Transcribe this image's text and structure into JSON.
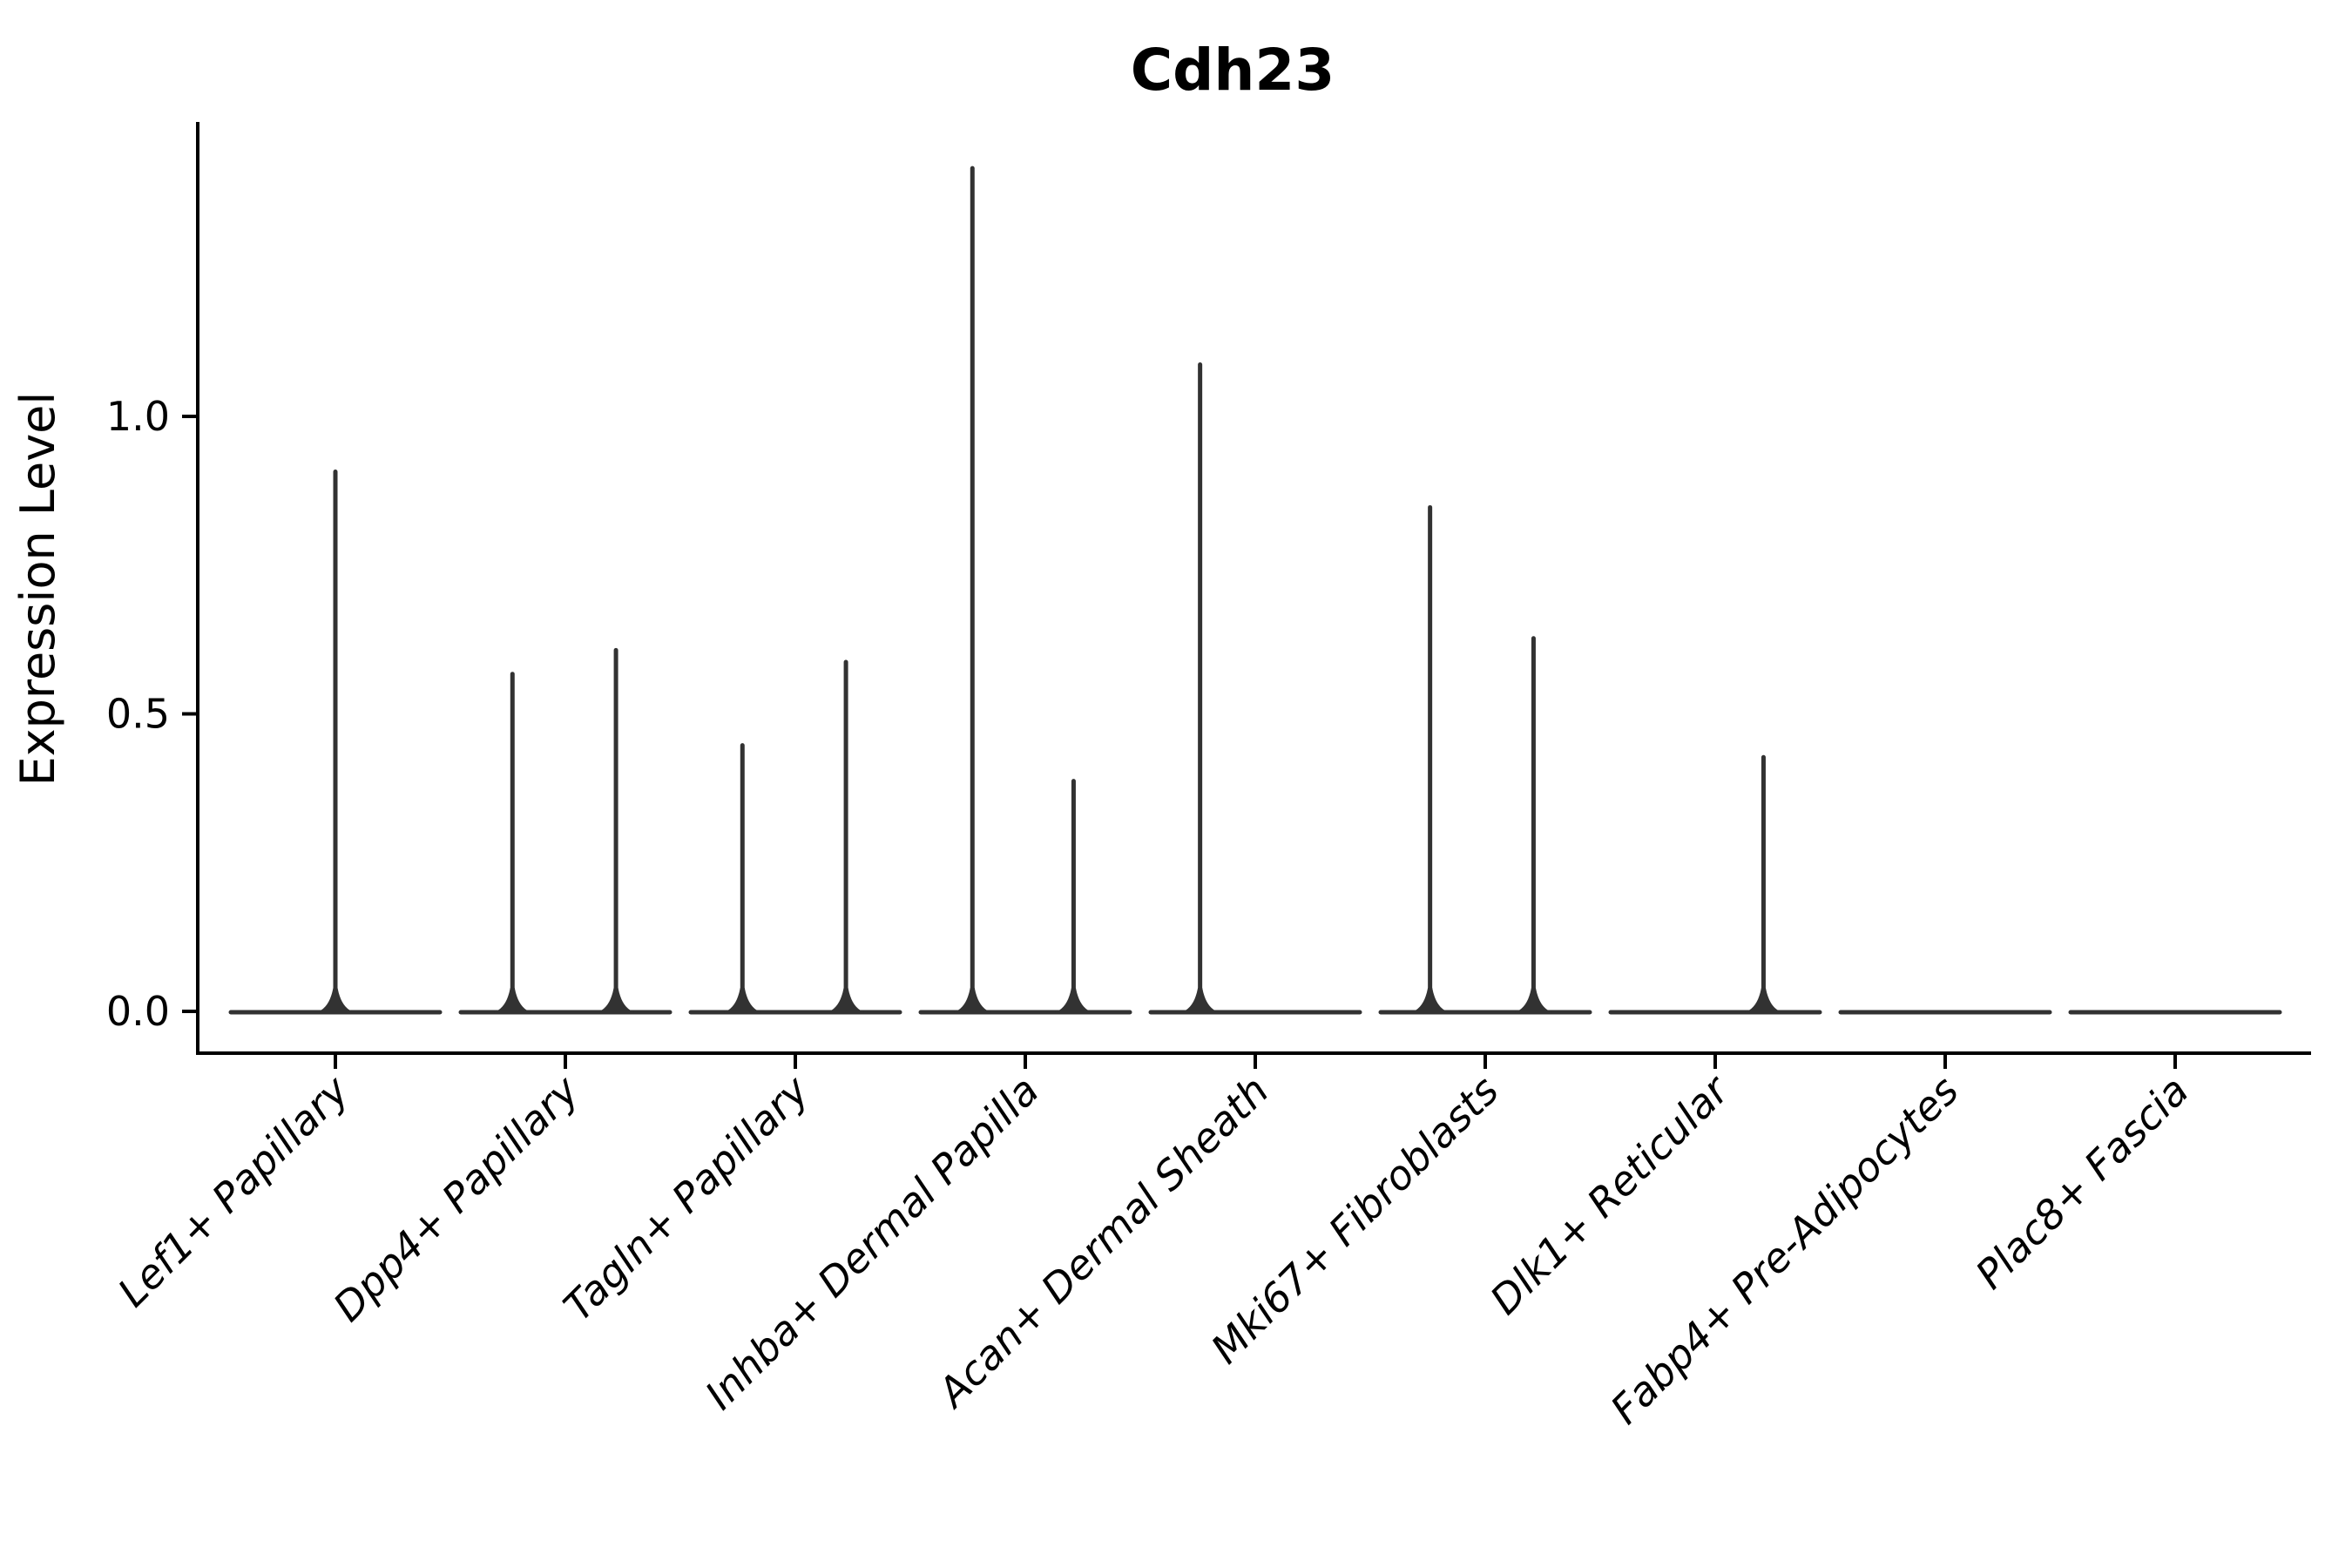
{
  "chart_data": {
    "type": "violin",
    "title": "Cdh23",
    "ylabel": "Expression Level",
    "xlabel": "",
    "ylim": [
      -0.07,
      1.5
    ],
    "yticks": [
      {
        "value": 0.0,
        "label": "0.0"
      },
      {
        "value": 0.5,
        "label": "0.5"
      },
      {
        "value": 1.0,
        "label": "1.0"
      }
    ],
    "grid": false,
    "legend": "none",
    "axis_color": "#000000",
    "violin_color": "#323232",
    "categories": [
      "Lef1+ Papillary",
      "Dpp4+ Papillary",
      "Tagln+ Papillary",
      "Inhba+ Dermal Papilla",
      "Acan+ Dermal Sheath",
      "Mki67+ Fibroblasts",
      "Dlk1+ Reticular",
      "Fabp4+ Pre-Adipocytes",
      "Plac8+ Fascia"
    ],
    "violins": [
      {
        "category": "Lef1+ Papillary",
        "baseline_at": 0.0,
        "spikes": [
          {
            "offset": 0.0,
            "max": 0.91
          }
        ]
      },
      {
        "category": "Dpp4+ Papillary",
        "baseline_at": 0.0,
        "spikes": [
          {
            "offset": -0.23,
            "max": 0.57
          },
          {
            "offset": 0.22,
            "max": 0.61
          }
        ]
      },
      {
        "category": "Tagln+ Papillary",
        "baseline_at": 0.0,
        "spikes": [
          {
            "offset": -0.23,
            "max": 0.45
          },
          {
            "offset": 0.22,
            "max": 0.59
          }
        ]
      },
      {
        "category": "Inhba+ Dermal Papilla",
        "baseline_at": 0.0,
        "spikes": [
          {
            "offset": -0.23,
            "max": 1.42
          },
          {
            "offset": 0.21,
            "max": 0.39
          }
        ]
      },
      {
        "category": "Acan+ Dermal Sheath",
        "baseline_at": 0.0,
        "spikes": [
          {
            "offset": -0.24,
            "max": 1.09
          }
        ]
      },
      {
        "category": "Mki67+ Fibroblasts",
        "baseline_at": 0.0,
        "spikes": [
          {
            "offset": -0.24,
            "max": 0.85
          },
          {
            "offset": 0.21,
            "max": 0.63
          }
        ]
      },
      {
        "category": "Dlk1+ Reticular",
        "baseline_at": 0.0,
        "spikes": [
          {
            "offset": 0.21,
            "max": 0.43
          }
        ]
      },
      {
        "category": "Fabp4+ Pre-Adipocytes",
        "baseline_at": 0.0,
        "spikes": []
      },
      {
        "category": "Plac8+ Fascia",
        "baseline_at": 0.0,
        "spikes": []
      }
    ],
    "note": "Expression is near zero for most cells in every cluster (flat violin baselines at 0); thin vertical density spikes mark the few cells reaching the maximum expression value."
  }
}
